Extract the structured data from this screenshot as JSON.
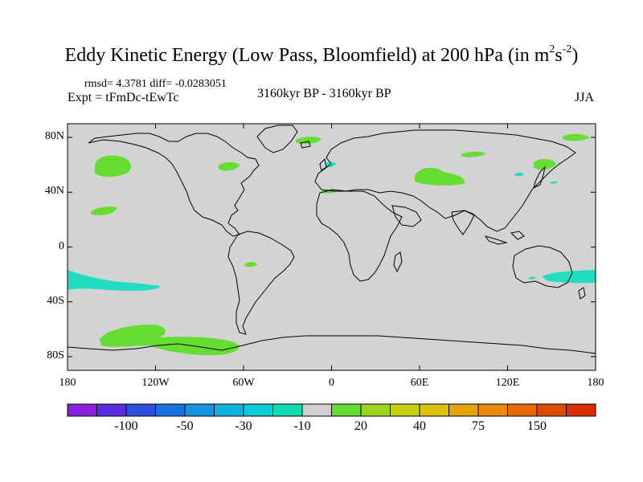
{
  "title": {
    "main": "Eddy Kinetic Energy (Low Pass, Bloomfield) at 200 hPa (in m",
    "exp1": "2",
    "mid": "s",
    "exp2": "-2",
    "close": ")"
  },
  "stats": "rmsd= 4.3781 diff= -0.0283051",
  "expt": "Expt = tFmDc-tEwTc",
  "period": "3160kyr BP - 3160kyr BP",
  "season": "JJA",
  "colors": {
    "land_bg": "#d3d3d3",
    "green": "#66dd33",
    "cyan": "#22ddc0",
    "coast": "#000000"
  },
  "map": {
    "y_axis": [
      {
        "lat": 80,
        "label": "80N"
      },
      {
        "lat": 40,
        "label": "40N"
      },
      {
        "lat": 0,
        "label": "0"
      },
      {
        "lat": -40,
        "label": "40S"
      },
      {
        "lat": -80,
        "label": "80S"
      }
    ],
    "x_axis": [
      {
        "lon": -180,
        "label": "180"
      },
      {
        "lon": -120,
        "label": "120W"
      },
      {
        "lon": -60,
        "label": "60W"
      },
      {
        "lon": 0,
        "label": "0"
      },
      {
        "lon": 60,
        "label": "60E"
      },
      {
        "lon": 120,
        "label": "120E"
      },
      {
        "lon": 180,
        "label": "180"
      }
    ]
  },
  "colorbar": {
    "colors": [
      "#8a1fe0",
      "#5a2ee0",
      "#2f4fe0",
      "#1a72e0",
      "#1594e0",
      "#12b2e0",
      "#10ccd6",
      "#10dcb0",
      "#d0d0d0",
      "#66dd33",
      "#9ed41e",
      "#c6d012",
      "#dcc10c",
      "#e6a40a",
      "#e88a08",
      "#e66a06",
      "#e04a04",
      "#d82e02"
    ],
    "labels": [
      {
        "after_box": 2,
        "text": "-100"
      },
      {
        "after_box": 4,
        "text": "-50"
      },
      {
        "after_box": 6,
        "text": "-30"
      },
      {
        "after_box": 8,
        "text": "-10"
      },
      {
        "after_box": 10,
        "text": "20"
      },
      {
        "after_box": 12,
        "text": "40"
      },
      {
        "after_box": 14,
        "text": "75"
      },
      {
        "after_box": 16,
        "text": "150"
      }
    ]
  }
}
